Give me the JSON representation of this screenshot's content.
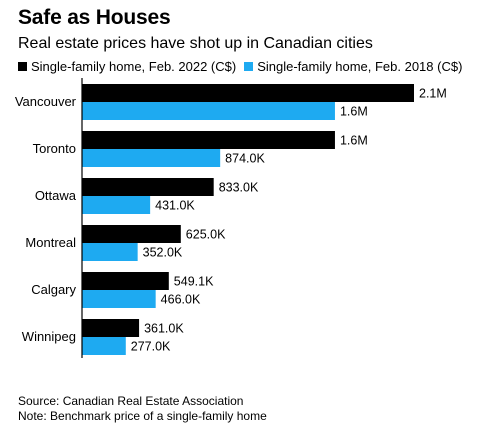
{
  "title": "Safe as Houses",
  "subtitle": "Real estate prices have shot up in Canadian cities",
  "footer": {
    "source": "Source: Canadian Real Estate Association",
    "note": "Note: Benchmark price of a single-family home"
  },
  "colors": {
    "series_2022": "#000000",
    "series_2018": "#1eaaf1",
    "baseline": "#000000"
  },
  "chart_data": {
    "type": "bar",
    "orientation": "horizontal",
    "categories": [
      "Vancouver",
      "Toronto",
      "Ottawa",
      "Montreal",
      "Calgary",
      "Winnipeg"
    ],
    "series": [
      {
        "name": "Single-family home, Feb. 2022 (C$)",
        "values": [
          2100000,
          1600000,
          833000,
          625000,
          549100,
          361000
        ],
        "labels": [
          "2.1M",
          "1.6M",
          "833.0K",
          "625.0K",
          "549.1K",
          "361.0K"
        ]
      },
      {
        "name": "Single-family home, Feb. 2018 (C$)",
        "values": [
          1600000,
          874000,
          431000,
          352000,
          466000,
          277000
        ],
        "labels": [
          "1.6M",
          "874.0K",
          "431.0K",
          "352.0K",
          "466.0K",
          "277.0K"
        ]
      }
    ],
    "xlim": [
      0,
      2100000
    ],
    "grid": false,
    "legend_position": "top-left"
  }
}
